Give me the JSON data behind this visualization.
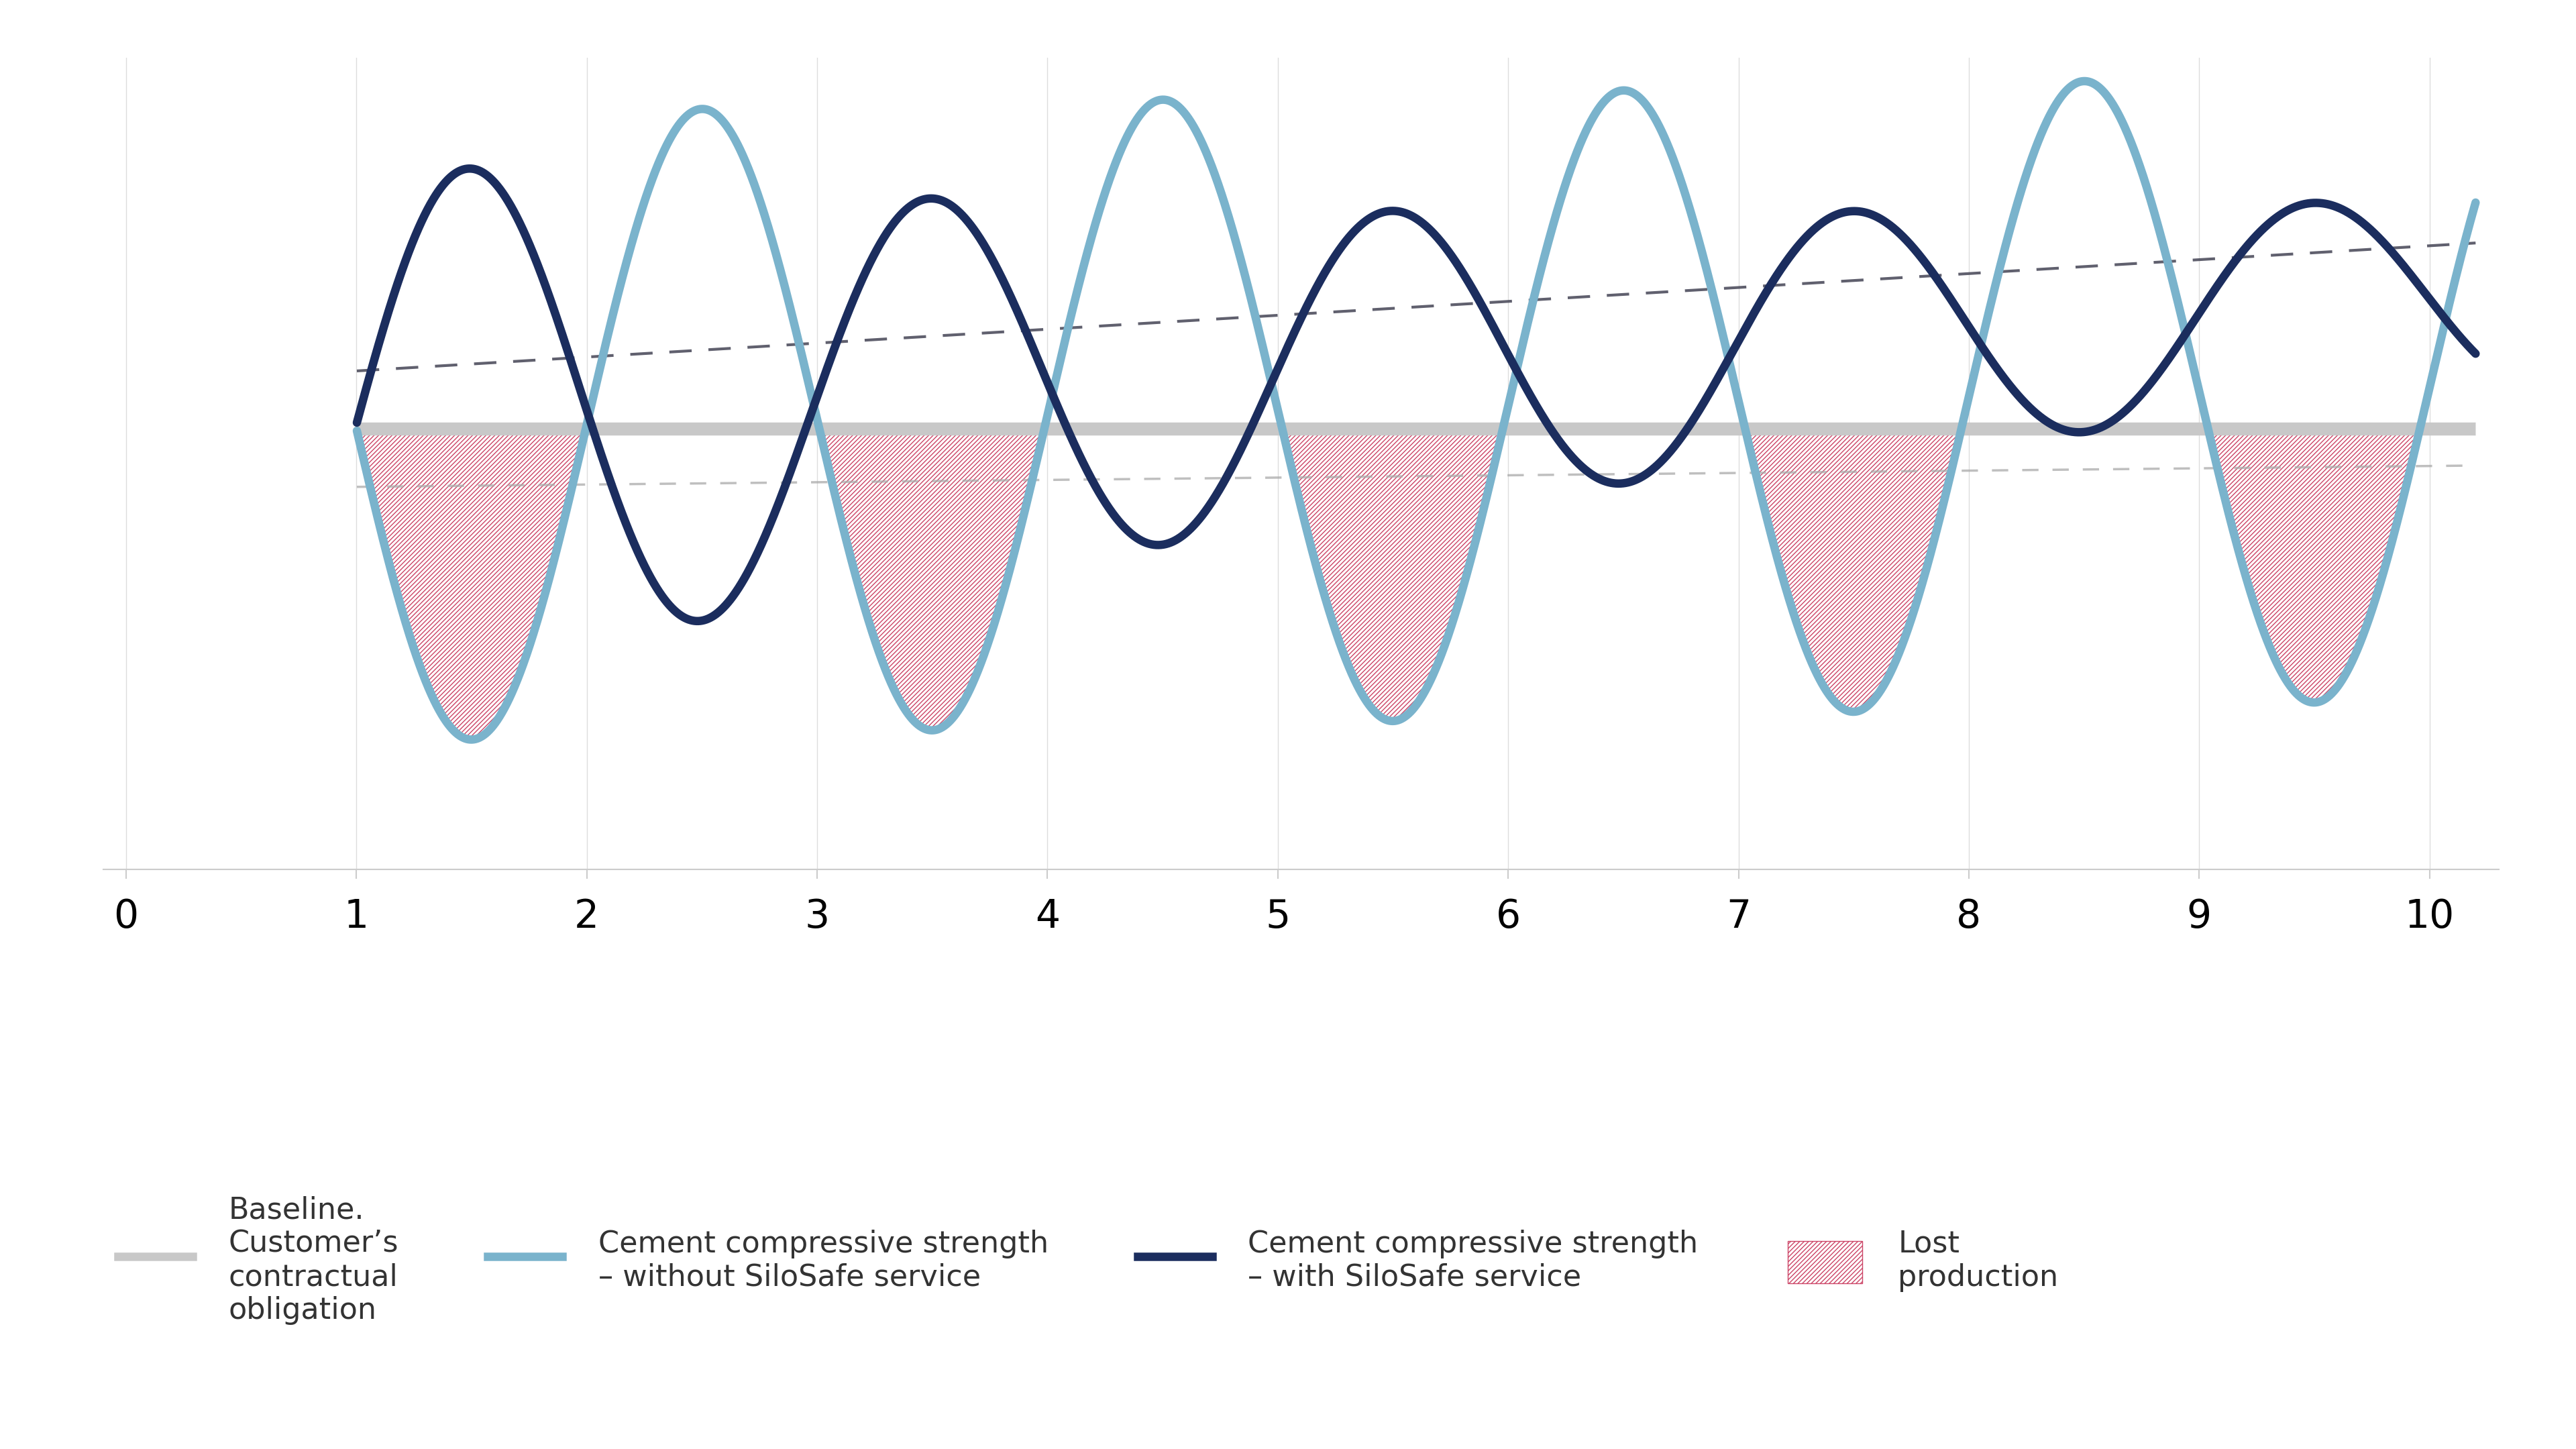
{
  "background_color": "#ffffff",
  "baseline_y": 0.0,
  "baseline_color": "#c8c8c8",
  "baseline_linewidth": 14,
  "dark_blue_color": "#1b2d5e",
  "dark_blue_linewidth": 9,
  "light_blue_color": "#7ab3cc",
  "light_blue_linewidth": 9,
  "dashed_dark_color": "#444455",
  "dashed_dark_linewidth": 3.0,
  "dashed_light_color": "#aaaaaa",
  "dashed_light_linewidth": 2.5,
  "hatch_color": "#cc4466",
  "x_min": -0.1,
  "x_max": 10.3,
  "y_min": -1.9,
  "y_max": 1.6,
  "x_ticks": [
    0,
    1,
    2,
    3,
    4,
    5,
    6,
    7,
    8,
    9,
    10
  ],
  "tick_fontsize": 42,
  "tick_color": "#444444",
  "legend_fontsize": 32,
  "legend_label_baseline": "Baseline.\nCustomer’s\ncontractual\nobligation",
  "legend_label_light_blue": "Cement compressive strength\n– without SiloSafe service",
  "legend_label_dark_blue": "Cement compressive strength\n– with SiloSafe service",
  "legend_label_hatch": "Lost\nproduction"
}
